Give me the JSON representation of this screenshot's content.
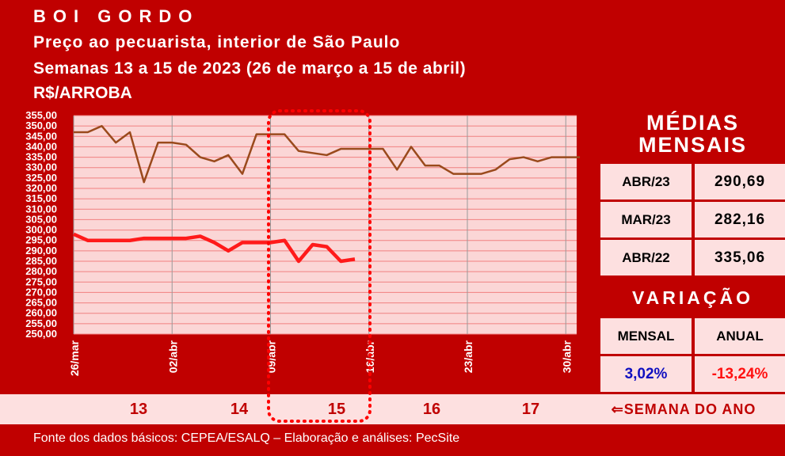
{
  "header": {
    "title": "BOI GORDO",
    "subtitle": "Preço ao pecuarista, interior de São Paulo",
    "period": "Semanas 13 a 15 de 2023 (26 de março a 15 de abril)",
    "unit": "R$/ARROBA"
  },
  "chart_data": {
    "type": "line",
    "categories": [
      "26/mar",
      null,
      null,
      null,
      null,
      null,
      null,
      "02/abr",
      null,
      null,
      null,
      null,
      null,
      null,
      "09/abr",
      null,
      null,
      null,
      null,
      null,
      null,
      "16/abr",
      null,
      null,
      null,
      null,
      null,
      null,
      "23/abr",
      null,
      null,
      null,
      null,
      null,
      null,
      "30/abr",
      null
    ],
    "series": [
      {
        "color": "#9a4a1c",
        "values": [
          347,
          347,
          350,
          342,
          347,
          323,
          342,
          342,
          341,
          335,
          333,
          336,
          327,
          346,
          346,
          346,
          338,
          337,
          336,
          339,
          339,
          339,
          339,
          329,
          340,
          331,
          331,
          327,
          327,
          327,
          329,
          334,
          335,
          333,
          335,
          335,
          335
        ]
      },
      {
        "color": "#ff1a1a",
        "values": [
          298,
          295,
          295,
          295,
          295,
          296,
          296,
          296,
          296,
          297,
          294,
          290,
          294,
          294,
          294,
          295,
          285,
          293,
          292,
          285,
          286,
          null,
          null,
          null,
          null,
          null,
          null,
          null,
          null,
          null,
          null,
          null,
          null,
          null,
          null,
          null,
          null
        ]
      }
    ],
    "ylim": [
      250,
      355
    ],
    "yticks": [
      {
        "value": 250,
        "label": "250,00"
      },
      {
        "value": 255,
        "label": "255,00"
      },
      {
        "value": 260,
        "label": "260,00"
      },
      {
        "value": 265,
        "label": "265,00"
      },
      {
        "value": 270,
        "label": "270,00"
      },
      {
        "value": 275,
        "label": "275,00"
      },
      {
        "value": 280,
        "label": "280,00"
      },
      {
        "value": 285,
        "label": "285,00"
      },
      {
        "value": 290,
        "label": "290,00"
      },
      {
        "value": 295,
        "label": "295,00"
      },
      {
        "value": 300,
        "label": "300,00"
      },
      {
        "value": 305,
        "label": "305,00"
      },
      {
        "value": 310,
        "label": "310,00"
      },
      {
        "value": 315,
        "label": "315,00"
      },
      {
        "value": 320,
        "label": "320,00"
      },
      {
        "value": 325,
        "label": "325,00"
      },
      {
        "value": 330,
        "label": "330,00"
      },
      {
        "value": 335,
        "label": "335,00"
      },
      {
        "value": 340,
        "label": "340,00"
      },
      {
        "value": 345,
        "label": "345,00"
      },
      {
        "value": 350,
        "label": "350,00"
      },
      {
        "value": 355,
        "label": "355,00"
      }
    ],
    "grid": true
  },
  "side_panel": {
    "averages_title": "MÉDIAS MENSAIS",
    "averages": [
      [
        "ABR/23",
        "290,69"
      ],
      [
        "MAR/23",
        "282,16"
      ],
      [
        "ABR/22",
        "335,06"
      ]
    ],
    "variation_title": "VARIAÇÃO",
    "variation_headers": [
      "MENSAL",
      "ANUAL"
    ],
    "variation_values": [
      "3,02%",
      "-13,24%"
    ]
  },
  "weeks": {
    "numbers": [
      "13",
      "14",
      "15",
      "16",
      "17"
    ],
    "label": "⇐SEMANA DO ANO"
  },
  "footer": "Fonte dos dados básicos: CEPEA/ESALQ – Elaboração e análises: PecSite"
}
